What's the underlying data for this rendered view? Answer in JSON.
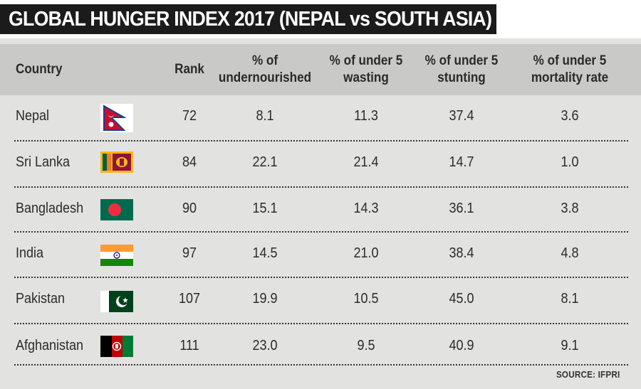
{
  "chart_data": {
    "type": "table",
    "title": "GLOBAL HUNGER INDEX 2017 (NEPAL vs SOUTH ASIA)",
    "columns": [
      {
        "key": "country",
        "label": "Country"
      },
      {
        "key": "rank",
        "label": "Rank"
      },
      {
        "key": "undernourished",
        "label_lines": [
          "% of",
          "undernourished"
        ]
      },
      {
        "key": "wasting",
        "label_lines": [
          "% of under 5",
          "wasting"
        ]
      },
      {
        "key": "stunting",
        "label_lines": [
          "% of under 5",
          "stunting"
        ]
      },
      {
        "key": "mortality",
        "label_lines": [
          "% of under 5",
          "mortality rate"
        ]
      }
    ],
    "rows": [
      {
        "country": "Nepal",
        "flag": "nepal-flag",
        "rank": "72",
        "undernourished": "8.1",
        "wasting": "11.3",
        "stunting": "37.4",
        "mortality": "3.6"
      },
      {
        "country": "Sri Lanka",
        "flag": "sri-lanka-flag",
        "rank": "84",
        "undernourished": "22.1",
        "wasting": "21.4",
        "stunting": "14.7",
        "mortality": "1.0"
      },
      {
        "country": "Bangladesh",
        "flag": "bangladesh-flag",
        "rank": "90",
        "undernourished": "15.1",
        "wasting": "14.3",
        "stunting": "36.1",
        "mortality": "3.8"
      },
      {
        "country": "India",
        "flag": "india-flag",
        "rank": "97",
        "undernourished": "14.5",
        "wasting": "21.0",
        "stunting": "38.4",
        "mortality": "4.8"
      },
      {
        "country": "Pakistan",
        "flag": "pakistan-flag",
        "rank": "107",
        "undernourished": "19.9",
        "wasting": "10.5",
        "stunting": "45.0",
        "mortality": "8.1"
      },
      {
        "country": "Afghanistan",
        "flag": "afghanistan-flag",
        "rank": "111",
        "undernourished": "23.0",
        "wasting": "9.5",
        "stunting": "40.9",
        "mortality": "9.1"
      }
    ],
    "source": "SOURCE: IFPRI"
  },
  "colors": {
    "title_bg": "#1b1b1b",
    "panel_bg": "#e2e2e0",
    "header_bg": "#c9c9c7",
    "text": "#2b2b2b"
  }
}
